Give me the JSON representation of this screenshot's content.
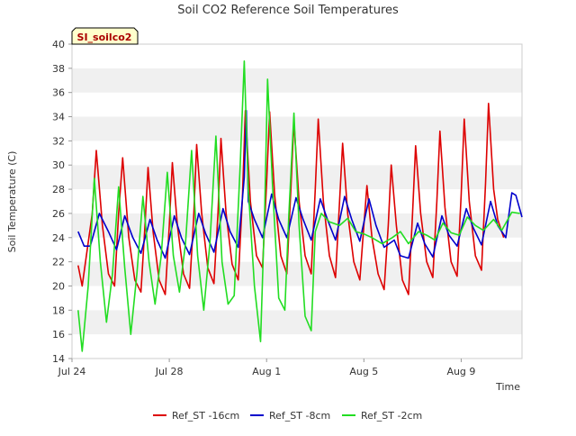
{
  "chart_data": {
    "type": "line",
    "title": "Soil CO2 Reference Soil Temperatures",
    "site_label": "SI_soilco2",
    "xlabel": "Time",
    "ylabel": "Soil Temperature (C)",
    "ylim": [
      14,
      40
    ],
    "y_ticks": [
      14,
      16,
      18,
      20,
      22,
      24,
      26,
      28,
      30,
      32,
      34,
      36,
      38,
      40
    ],
    "xlim": [
      "2025-07-24",
      "2025-08-11T12:00"
    ],
    "x_ticks": [
      {
        "date": "2025-07-24",
        "label": "Jul 24"
      },
      {
        "date": "2025-07-28",
        "label": "Jul 28"
      },
      {
        "date": "2025-08-01",
        "label": "Aug 1"
      },
      {
        "date": "2025-08-05",
        "label": "Aug 5"
      },
      {
        "date": "2025-08-09",
        "label": "Aug 9"
      }
    ],
    "grid": "horizontal bands",
    "legend_position": "bottom",
    "series": [
      {
        "name": "Ref_ST -16cm",
        "color": "#dd0000",
        "points": [
          [
            "2025-07-24T06:00",
            21.7
          ],
          [
            "2025-07-24T10:00",
            20.0
          ],
          [
            "2025-07-24T20:00",
            26.0
          ],
          [
            "2025-07-25T00:00",
            31.2
          ],
          [
            "2025-07-25T06:00",
            25.0
          ],
          [
            "2025-07-25T12:00",
            21.0
          ],
          [
            "2025-07-25T18:00",
            20.0
          ],
          [
            "2025-07-25T22:00",
            26.0
          ],
          [
            "2025-07-26T02:00",
            30.6
          ],
          [
            "2025-07-26T08:00",
            24.0
          ],
          [
            "2025-07-26T14:00",
            20.5
          ],
          [
            "2025-07-26T20:00",
            19.5
          ],
          [
            "2025-07-27T00:00",
            25.0
          ],
          [
            "2025-07-27T03:00",
            29.8
          ],
          [
            "2025-07-27T08:00",
            24.5
          ],
          [
            "2025-07-27T14:00",
            20.5
          ],
          [
            "2025-07-27T20:00",
            19.3
          ],
          [
            "2025-07-28T00:00",
            25.0
          ],
          [
            "2025-07-28T03:00",
            30.2
          ],
          [
            "2025-07-28T08:00",
            25.0
          ],
          [
            "2025-07-28T14:00",
            21.0
          ],
          [
            "2025-07-28T20:00",
            19.8
          ],
          [
            "2025-07-29T00:00",
            25.5
          ],
          [
            "2025-07-29T03:00",
            31.7
          ],
          [
            "2025-07-29T08:00",
            26.0
          ],
          [
            "2025-07-29T14:00",
            21.5
          ],
          [
            "2025-07-29T20:00",
            20.2
          ],
          [
            "2025-07-30T00:00",
            26.0
          ],
          [
            "2025-07-30T03:00",
            32.2
          ],
          [
            "2025-07-30T08:00",
            26.0
          ],
          [
            "2025-07-30T14:00",
            21.8
          ],
          [
            "2025-07-30T20:00",
            20.5
          ],
          [
            "2025-07-31T00:00",
            27.0
          ],
          [
            "2025-07-31T03:00",
            34.5
          ],
          [
            "2025-07-31T08:00",
            27.0
          ],
          [
            "2025-07-31T14:00",
            22.5
          ],
          [
            "2025-07-31T20:00",
            21.5
          ],
          [
            "2025-08-01T00:00",
            28.5
          ],
          [
            "2025-08-01T03:00",
            34.4
          ],
          [
            "2025-08-01T08:00",
            27.5
          ],
          [
            "2025-08-01T14:00",
            22.5
          ],
          [
            "2025-08-01T20:00",
            21.0
          ],
          [
            "2025-08-02T00:00",
            28.0
          ],
          [
            "2025-08-02T03:00",
            33.6
          ],
          [
            "2025-08-02T08:00",
            27.0
          ],
          [
            "2025-08-02T14:00",
            22.5
          ],
          [
            "2025-08-02T20:00",
            21.0
          ],
          [
            "2025-08-03T00:00",
            28.0
          ],
          [
            "2025-08-03T03:00",
            33.8
          ],
          [
            "2025-08-03T08:00",
            27.0
          ],
          [
            "2025-08-03T14:00",
            22.5
          ],
          [
            "2025-08-03T20:00",
            20.7
          ],
          [
            "2025-08-04T00:00",
            27.0
          ],
          [
            "2025-08-04T03:00",
            31.8
          ],
          [
            "2025-08-04T08:00",
            26.0
          ],
          [
            "2025-08-04T14:00",
            22.0
          ],
          [
            "2025-08-04T20:00",
            20.5
          ],
          [
            "2025-08-05T00:00",
            25.0
          ],
          [
            "2025-08-05T03:00",
            28.3
          ],
          [
            "2025-08-05T08:00",
            24.0
          ],
          [
            "2025-08-05T14:00",
            21.0
          ],
          [
            "2025-08-05T20:00",
            19.7
          ],
          [
            "2025-08-06T00:00",
            25.0
          ],
          [
            "2025-08-06T03:00",
            30.0
          ],
          [
            "2025-08-06T08:00",
            25.0
          ],
          [
            "2025-08-06T14:00",
            20.5
          ],
          [
            "2025-08-06T20:00",
            19.3
          ],
          [
            "2025-08-07T00:00",
            26.0
          ],
          [
            "2025-08-07T03:00",
            31.6
          ],
          [
            "2025-08-07T08:00",
            26.0
          ],
          [
            "2025-08-07T14:00",
            22.0
          ],
          [
            "2025-08-07T20:00",
            20.7
          ],
          [
            "2025-08-08T00:00",
            27.0
          ],
          [
            "2025-08-08T03:00",
            32.8
          ],
          [
            "2025-08-08T08:00",
            26.5
          ],
          [
            "2025-08-08T14:00",
            22.0
          ],
          [
            "2025-08-08T20:00",
            20.8
          ],
          [
            "2025-08-09T00:00",
            27.5
          ],
          [
            "2025-08-09T03:00",
            33.8
          ],
          [
            "2025-08-09T08:00",
            27.0
          ],
          [
            "2025-08-09T14:00",
            22.5
          ],
          [
            "2025-08-09T20:00",
            21.3
          ],
          [
            "2025-08-10T00:00",
            28.5
          ],
          [
            "2025-08-10T03:00",
            35.1
          ],
          [
            "2025-08-10T08:00",
            28.0
          ],
          [
            "2025-08-10T12:00",
            25.5
          ],
          [
            "2025-08-10T18:00",
            24.0
          ]
        ]
      },
      {
        "name": "Ref_ST -8cm",
        "color": "#0000cc",
        "points": [
          [
            "2025-07-24T06:00",
            24.5
          ],
          [
            "2025-07-24T12:00",
            23.3
          ],
          [
            "2025-07-24T18:00",
            23.3
          ],
          [
            "2025-07-25T03:00",
            26.0
          ],
          [
            "2025-07-25T12:00",
            24.5
          ],
          [
            "2025-07-25T20:00",
            23.0
          ],
          [
            "2025-07-26T04:00",
            25.8
          ],
          [
            "2025-07-26T12:00",
            24.0
          ],
          [
            "2025-07-26T20:00",
            22.7
          ],
          [
            "2025-07-27T05:00",
            25.5
          ],
          [
            "2025-07-27T12:00",
            23.8
          ],
          [
            "2025-07-27T20:00",
            22.3
          ],
          [
            "2025-07-28T05:00",
            25.8
          ],
          [
            "2025-07-28T12:00",
            24.0
          ],
          [
            "2025-07-28T20:00",
            22.6
          ],
          [
            "2025-07-29T05:00",
            26.0
          ],
          [
            "2025-07-29T12:00",
            24.3
          ],
          [
            "2025-07-29T20:00",
            22.8
          ],
          [
            "2025-07-30T05:00",
            26.4
          ],
          [
            "2025-07-30T12:00",
            24.5
          ],
          [
            "2025-07-30T20:00",
            23.2
          ],
          [
            "2025-07-31T02:00",
            29.0
          ],
          [
            "2025-07-31T04:00",
            34.5
          ],
          [
            "2025-07-31T06:00",
            27.0
          ],
          [
            "2025-07-31T12:00",
            25.5
          ],
          [
            "2025-07-31T20:00",
            24.0
          ],
          [
            "2025-08-01T05:00",
            27.6
          ],
          [
            "2025-08-01T12:00",
            25.5
          ],
          [
            "2025-08-01T20:00",
            24.0
          ],
          [
            "2025-08-02T05:00",
            27.3
          ],
          [
            "2025-08-02T12:00",
            25.5
          ],
          [
            "2025-08-02T20:00",
            23.8
          ],
          [
            "2025-08-03T05:00",
            27.2
          ],
          [
            "2025-08-03T12:00",
            25.5
          ],
          [
            "2025-08-03T20:00",
            23.8
          ],
          [
            "2025-08-04T05:00",
            27.4
          ],
          [
            "2025-08-04T12:00",
            25.5
          ],
          [
            "2025-08-04T20:00",
            23.7
          ],
          [
            "2025-08-05T05:00",
            27.2
          ],
          [
            "2025-08-05T12:00",
            25.0
          ],
          [
            "2025-08-05T20:00",
            23.2
          ],
          [
            "2025-08-06T06:00",
            23.8
          ],
          [
            "2025-08-06T12:00",
            22.5
          ],
          [
            "2025-08-06T20:00",
            22.3
          ],
          [
            "2025-08-07T05:00",
            25.2
          ],
          [
            "2025-08-07T12:00",
            23.5
          ],
          [
            "2025-08-07T20:00",
            22.4
          ],
          [
            "2025-08-08T05:00",
            25.8
          ],
          [
            "2025-08-08T12:00",
            24.2
          ],
          [
            "2025-08-08T20:00",
            23.3
          ],
          [
            "2025-08-09T05:00",
            26.4
          ],
          [
            "2025-08-09T12:00",
            24.8
          ],
          [
            "2025-08-09T20:00",
            23.4
          ],
          [
            "2025-08-10T05:00",
            27.0
          ],
          [
            "2025-08-10T12:00",
            25.0
          ],
          [
            "2025-08-10T20:00",
            24.0
          ],
          [
            "2025-08-11T02:00",
            27.7
          ],
          [
            "2025-08-11T06:00",
            27.5
          ],
          [
            "2025-08-11T12:00",
            25.7
          ]
        ]
      },
      {
        "name": "Ref_ST -2cm",
        "color": "#22dd22",
        "points": [
          [
            "2025-07-24T06:00",
            18.0
          ],
          [
            "2025-07-24T10:00",
            14.6
          ],
          [
            "2025-07-24T16:00",
            20.0
          ],
          [
            "2025-07-24T22:00",
            28.9
          ],
          [
            "2025-07-25T04:00",
            22.0
          ],
          [
            "2025-07-25T10:00",
            17.0
          ],
          [
            "2025-07-25T16:00",
            21.0
          ],
          [
            "2025-07-25T22:00",
            28.2
          ],
          [
            "2025-07-26T04:00",
            21.5
          ],
          [
            "2025-07-26T10:00",
            16.0
          ],
          [
            "2025-07-26T16:00",
            21.0
          ],
          [
            "2025-07-26T22:00",
            27.4
          ],
          [
            "2025-07-27T04:00",
            22.0
          ],
          [
            "2025-07-27T10:00",
            18.5
          ],
          [
            "2025-07-27T16:00",
            22.5
          ],
          [
            "2025-07-27T22:00",
            29.4
          ],
          [
            "2025-07-28T04:00",
            22.5
          ],
          [
            "2025-07-28T10:00",
            19.5
          ],
          [
            "2025-07-28T16:00",
            23.5
          ],
          [
            "2025-07-28T22:00",
            31.2
          ],
          [
            "2025-07-29T04:00",
            22.5
          ],
          [
            "2025-07-29T10:00",
            18.0
          ],
          [
            "2025-07-29T16:00",
            23.5
          ],
          [
            "2025-07-29T22:00",
            32.4
          ],
          [
            "2025-07-30T04:00",
            22.0
          ],
          [
            "2025-07-30T10:00",
            18.5
          ],
          [
            "2025-07-30T16:00",
            19.2
          ],
          [
            "2025-07-30T22:00",
            30.0
          ],
          [
            "2025-07-31T02:00",
            38.6
          ],
          [
            "2025-07-31T06:00",
            28.0
          ],
          [
            "2025-07-31T12:00",
            20.0
          ],
          [
            "2025-07-31T18:00",
            15.4
          ],
          [
            "2025-07-31T22:00",
            26.0
          ],
          [
            "2025-08-01T01:00",
            37.1
          ],
          [
            "2025-08-01T06:00",
            28.0
          ],
          [
            "2025-08-01T12:00",
            19.0
          ],
          [
            "2025-08-01T18:00",
            18.0
          ],
          [
            "2025-08-01T22:00",
            26.0
          ],
          [
            "2025-08-02T03:00",
            34.3
          ],
          [
            "2025-08-02T08:00",
            25.0
          ],
          [
            "2025-08-02T14:00",
            17.5
          ],
          [
            "2025-08-02T20:00",
            16.3
          ],
          [
            "2025-08-03T00:00",
            24.5
          ],
          [
            "2025-08-03T06:00",
            26.0
          ],
          [
            "2025-08-03T14:00",
            25.3
          ],
          [
            "2025-08-04T00:00",
            25.0
          ],
          [
            "2025-08-04T08:00",
            25.6
          ],
          [
            "2025-08-04T16:00",
            24.5
          ],
          [
            "2025-08-05T00:00",
            24.3
          ],
          [
            "2025-08-05T08:00",
            24.0
          ],
          [
            "2025-08-05T18:00",
            23.5
          ],
          [
            "2025-08-06T04:00",
            24.0
          ],
          [
            "2025-08-06T12:00",
            24.5
          ],
          [
            "2025-08-06T20:00",
            23.5
          ],
          [
            "2025-08-07T06:00",
            24.5
          ],
          [
            "2025-08-07T14:00",
            24.2
          ],
          [
            "2025-08-07T22:00",
            23.8
          ],
          [
            "2025-08-08T06:00",
            25.2
          ],
          [
            "2025-08-08T14:00",
            24.4
          ],
          [
            "2025-08-08T22:00",
            24.2
          ],
          [
            "2025-08-09T06:00",
            25.7
          ],
          [
            "2025-08-09T14:00",
            25.0
          ],
          [
            "2025-08-09T22:00",
            24.6
          ],
          [
            "2025-08-10T08:00",
            25.5
          ],
          [
            "2025-08-10T16:00",
            24.6
          ],
          [
            "2025-08-11T02:00",
            26.1
          ],
          [
            "2025-08-11T10:00",
            26.0
          ]
        ]
      }
    ]
  }
}
